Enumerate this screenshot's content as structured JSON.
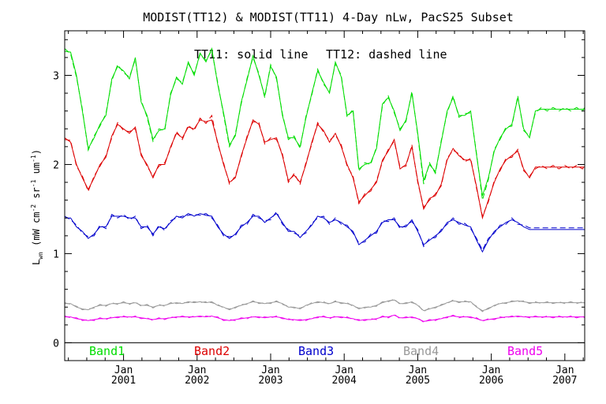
{
  "chart_data": {
    "type": "line",
    "title": "MODIST(TT12) & MODIST(TT11) 4-Day nLw, PacS25 Subset",
    "annotation": {
      "solid": "TT11: solid line",
      "dashed": "TT12: dashed line"
    },
    "ylabel": {
      "main": "L",
      "sub": "wn",
      "unit_open": " (mW cm",
      "sup1": "-2",
      "unit_sr": " sr",
      "sup2": "-1",
      "unit_um": " um",
      "sup3": "-1",
      "unit_close": ")"
    },
    "xlim": [
      2000.2,
      2007.27
    ],
    "ylim": [
      -0.2,
      3.5
    ],
    "grid": false,
    "x_ticks": [
      {
        "month": "Jan",
        "year": "2001",
        "x": 2001.0
      },
      {
        "month": "Jan",
        "year": "2002",
        "x": 2002.0
      },
      {
        "month": "Jan",
        "year": "2003",
        "x": 2003.0
      },
      {
        "month": "Jan",
        "year": "2004",
        "x": 2004.0
      },
      {
        "month": "Jan",
        "year": "2005",
        "x": 2005.0
      },
      {
        "month": "Jan",
        "year": "2006",
        "x": 2006.0
      },
      {
        "month": "Jan",
        "year": "2007",
        "x": 2007.0
      }
    ],
    "y_ticks": [
      {
        "label": "0",
        "value": 0
      },
      {
        "label": "1",
        "value": 1
      },
      {
        "label": "2",
        "value": 2
      },
      {
        "label": "3",
        "value": 3
      }
    ],
    "x": [
      2000.2,
      2000.28,
      2000.36,
      2000.44,
      2000.52,
      2000.6,
      2000.68,
      2000.76,
      2000.84,
      2000.92,
      2001.0,
      2001.08,
      2001.16,
      2001.24,
      2001.32,
      2001.4,
      2001.48,
      2001.56,
      2001.64,
      2001.72,
      2001.8,
      2001.88,
      2001.96,
      2002.04,
      2002.12,
      2002.2,
      2002.28,
      2002.36,
      2002.44,
      2002.52,
      2002.6,
      2002.68,
      2002.76,
      2002.84,
      2002.92,
      2003.0,
      2003.08,
      2003.16,
      2003.24,
      2003.32,
      2003.4,
      2003.48,
      2003.56,
      2003.64,
      2003.72,
      2003.8,
      2003.88,
      2003.96,
      2004.04,
      2004.12,
      2004.2,
      2004.28,
      2004.36,
      2004.44,
      2004.52,
      2004.6,
      2004.68,
      2004.76,
      2004.84,
      2004.92,
      2005.0,
      2005.08,
      2005.16,
      2005.24,
      2005.32,
      2005.4,
      2005.48,
      2005.56,
      2005.64,
      2005.72,
      2005.8,
      2005.88,
      2005.96,
      2006.04,
      2006.12,
      2006.2,
      2006.28,
      2006.36,
      2006.44,
      2006.52,
      2006.6,
      2006.68,
      2006.76,
      2006.84,
      2006.92,
      2007.0,
      2007.08,
      2007.16,
      2007.24,
      2007.27
    ],
    "series": [
      {
        "name": "Band1",
        "color": "#00dd00",
        "solid": [
          3.27,
          3.26,
          3.0,
          2.6,
          2.18,
          2.3,
          2.45,
          2.55,
          2.96,
          3.1,
          3.05,
          2.96,
          3.2,
          2.7,
          2.55,
          2.28,
          2.38,
          2.4,
          2.78,
          2.98,
          2.9,
          3.15,
          3.0,
          3.25,
          3.15,
          3.3,
          2.9,
          2.58,
          2.22,
          2.32,
          2.7,
          2.95,
          3.22,
          3.0,
          2.77,
          3.1,
          2.98,
          2.55,
          2.3,
          2.3,
          2.2,
          2.52,
          2.8,
          3.05,
          2.92,
          2.8,
          3.15,
          2.98,
          2.55,
          2.6,
          1.95,
          2.0,
          2.02,
          2.18,
          2.68,
          2.75,
          2.6,
          2.38,
          2.5,
          2.8,
          2.35,
          1.82,
          2.0,
          1.92,
          2.25,
          2.6,
          2.75,
          2.55,
          2.55,
          2.6,
          2.1,
          1.65,
          1.85,
          2.15,
          2.3,
          2.4,
          2.45,
          2.75,
          2.4,
          2.3,
          2.6,
          2.62,
          2.62,
          2.62,
          2.62,
          2.62,
          2.62,
          2.62,
          2.62,
          2.62
        ],
        "dashed": [
          3.3,
          3.24,
          2.98,
          2.62,
          2.16,
          2.32,
          2.43,
          2.57,
          2.94,
          3.12,
          3.03,
          2.98,
          3.18,
          2.72,
          2.53,
          2.26,
          2.4,
          2.38,
          2.8,
          2.96,
          2.92,
          3.13,
          3.02,
          3.23,
          3.17,
          3.28,
          2.92,
          2.56,
          2.2,
          2.34,
          2.68,
          2.97,
          3.2,
          3.02,
          2.75,
          3.12,
          2.96,
          2.57,
          2.28,
          2.32,
          2.18,
          2.54,
          2.78,
          3.07,
          2.9,
          2.82,
          3.13,
          3.0,
          2.53,
          2.62,
          1.93,
          2.02,
          2.0,
          2.2,
          2.66,
          2.77,
          2.58,
          2.4,
          2.48,
          2.82,
          2.33,
          1.78,
          2.02,
          1.9,
          2.27,
          2.58,
          2.77,
          2.53,
          2.57,
          2.58,
          2.12,
          1.6,
          1.83,
          2.17,
          2.28,
          2.42,
          2.43,
          2.77,
          2.38,
          2.32,
          2.58,
          2.64,
          2.6,
          2.64,
          2.6,
          2.64,
          2.6,
          2.64,
          2.6,
          2.64
        ]
      },
      {
        "name": "Band2",
        "color": "#dd0000",
        "solid": [
          2.3,
          2.25,
          2.0,
          1.85,
          1.72,
          1.85,
          2.0,
          2.08,
          2.32,
          2.45,
          2.4,
          2.35,
          2.42,
          2.1,
          2.0,
          1.85,
          2.0,
          2.0,
          2.2,
          2.35,
          2.3,
          2.42,
          2.4,
          2.5,
          2.48,
          2.5,
          2.25,
          2.0,
          1.8,
          1.85,
          2.1,
          2.3,
          2.5,
          2.45,
          2.25,
          2.28,
          2.3,
          2.1,
          1.82,
          1.88,
          1.8,
          2.0,
          2.25,
          2.45,
          2.38,
          2.25,
          2.35,
          2.2,
          2.0,
          1.85,
          1.58,
          1.65,
          1.72,
          1.8,
          2.05,
          2.15,
          2.28,
          1.95,
          2.0,
          2.2,
          1.82,
          1.5,
          1.62,
          1.65,
          1.78,
          2.05,
          2.18,
          2.1,
          2.05,
          2.05,
          1.75,
          1.4,
          1.6,
          1.8,
          1.95,
          2.05,
          2.1,
          2.15,
          1.95,
          1.85,
          1.97,
          1.97,
          1.97,
          1.97,
          1.97,
          1.97,
          1.97,
          1.97,
          1.97,
          1.97
        ],
        "dashed": [
          2.28,
          2.27,
          1.98,
          1.87,
          1.7,
          1.87,
          1.98,
          2.1,
          2.3,
          2.47,
          2.38,
          2.37,
          2.4,
          2.12,
          1.98,
          1.87,
          1.98,
          2.02,
          2.18,
          2.37,
          2.28,
          2.44,
          2.38,
          2.52,
          2.46,
          2.55,
          2.23,
          2.02,
          1.78,
          1.87,
          2.08,
          2.32,
          2.48,
          2.47,
          2.23,
          2.3,
          2.28,
          2.12,
          1.8,
          1.9,
          1.78,
          2.02,
          2.23,
          2.47,
          2.36,
          2.27,
          2.33,
          2.22,
          1.98,
          1.87,
          1.56,
          1.67,
          1.7,
          1.82,
          2.03,
          2.17,
          2.26,
          1.97,
          1.98,
          2.22,
          1.8,
          1.52,
          1.6,
          1.67,
          1.76,
          2.07,
          2.16,
          2.12,
          2.03,
          2.07,
          1.73,
          1.42,
          1.58,
          1.82,
          1.93,
          2.07,
          2.08,
          2.17,
          1.93,
          1.87,
          1.95,
          1.99,
          1.95,
          1.99,
          1.95,
          1.99,
          1.95,
          1.99,
          1.95,
          1.99
        ]
      },
      {
        "name": "Band3",
        "color": "#0000cc",
        "solid": [
          1.4,
          1.4,
          1.3,
          1.25,
          1.17,
          1.22,
          1.3,
          1.3,
          1.42,
          1.42,
          1.42,
          1.4,
          1.4,
          1.3,
          1.3,
          1.22,
          1.3,
          1.28,
          1.35,
          1.42,
          1.4,
          1.45,
          1.42,
          1.45,
          1.43,
          1.42,
          1.3,
          1.22,
          1.17,
          1.22,
          1.3,
          1.35,
          1.42,
          1.42,
          1.35,
          1.4,
          1.45,
          1.35,
          1.25,
          1.25,
          1.18,
          1.25,
          1.32,
          1.42,
          1.4,
          1.35,
          1.38,
          1.35,
          1.3,
          1.25,
          1.1,
          1.15,
          1.2,
          1.25,
          1.35,
          1.38,
          1.38,
          1.3,
          1.3,
          1.38,
          1.25,
          1.1,
          1.15,
          1.2,
          1.25,
          1.35,
          1.38,
          1.35,
          1.32,
          1.3,
          1.15,
          1.02,
          1.15,
          1.25,
          1.3,
          1.35,
          1.38,
          1.35,
          1.3,
          1.27,
          1.27,
          1.27,
          1.27,
          1.27,
          1.27,
          1.27,
          1.27,
          1.27,
          1.27,
          1.27
        ],
        "dashed": [
          1.42,
          1.38,
          1.32,
          1.23,
          1.19,
          1.2,
          1.32,
          1.28,
          1.44,
          1.4,
          1.44,
          1.38,
          1.42,
          1.28,
          1.32,
          1.2,
          1.32,
          1.26,
          1.37,
          1.4,
          1.42,
          1.43,
          1.44,
          1.43,
          1.45,
          1.4,
          1.32,
          1.2,
          1.19,
          1.2,
          1.32,
          1.33,
          1.44,
          1.4,
          1.37,
          1.38,
          1.47,
          1.33,
          1.27,
          1.23,
          1.2,
          1.23,
          1.34,
          1.4,
          1.42,
          1.33,
          1.4,
          1.33,
          1.32,
          1.23,
          1.12,
          1.13,
          1.22,
          1.23,
          1.37,
          1.36,
          1.4,
          1.28,
          1.32,
          1.36,
          1.27,
          1.08,
          1.17,
          1.18,
          1.27,
          1.33,
          1.4,
          1.33,
          1.34,
          1.28,
          1.17,
          1.04,
          1.17,
          1.23,
          1.32,
          1.33,
          1.4,
          1.33,
          1.32,
          1.29,
          1.29,
          1.29,
          1.29,
          1.29,
          1.29,
          1.29,
          1.29,
          1.29,
          1.29,
          1.29
        ]
      },
      {
        "name": "Band4",
        "color": "#999999",
        "solid": [
          0.44,
          0.44,
          0.4,
          0.38,
          0.37,
          0.4,
          0.42,
          0.42,
          0.44,
          0.44,
          0.45,
          0.44,
          0.45,
          0.42,
          0.42,
          0.4,
          0.42,
          0.42,
          0.44,
          0.45,
          0.44,
          0.46,
          0.45,
          0.46,
          0.45,
          0.46,
          0.42,
          0.4,
          0.37,
          0.4,
          0.42,
          0.44,
          0.46,
          0.45,
          0.44,
          0.45,
          0.46,
          0.44,
          0.4,
          0.4,
          0.38,
          0.42,
          0.44,
          0.46,
          0.45,
          0.44,
          0.46,
          0.45,
          0.44,
          0.42,
          0.38,
          0.4,
          0.4,
          0.42,
          0.45,
          0.47,
          0.48,
          0.44,
          0.44,
          0.46,
          0.42,
          0.36,
          0.38,
          0.4,
          0.42,
          0.45,
          0.47,
          0.46,
          0.46,
          0.46,
          0.4,
          0.36,
          0.38,
          0.42,
          0.44,
          0.45,
          0.46,
          0.47,
          0.46,
          0.45,
          0.45,
          0.45,
          0.45,
          0.45,
          0.45,
          0.45,
          0.45,
          0.45,
          0.45,
          0.45
        ],
        "dashed": [
          0.45,
          0.43,
          0.41,
          0.37,
          0.38,
          0.39,
          0.43,
          0.41,
          0.45,
          0.43,
          0.46,
          0.43,
          0.46,
          0.41,
          0.43,
          0.39,
          0.43,
          0.41,
          0.45,
          0.44,
          0.45,
          0.45,
          0.46,
          0.45,
          0.46,
          0.45,
          0.43,
          0.39,
          0.38,
          0.39,
          0.43,
          0.43,
          0.47,
          0.44,
          0.45,
          0.44,
          0.47,
          0.43,
          0.41,
          0.39,
          0.39,
          0.41,
          0.45,
          0.45,
          0.46,
          0.43,
          0.47,
          0.44,
          0.45,
          0.41,
          0.39,
          0.39,
          0.41,
          0.41,
          0.46,
          0.46,
          0.49,
          0.43,
          0.45,
          0.45,
          0.43,
          0.35,
          0.39,
          0.39,
          0.43,
          0.44,
          0.48,
          0.45,
          0.47,
          0.45,
          0.41,
          0.35,
          0.39,
          0.41,
          0.45,
          0.44,
          0.47,
          0.46,
          0.47,
          0.44,
          0.46,
          0.44,
          0.46,
          0.44,
          0.46,
          0.44,
          0.46,
          0.44,
          0.46,
          0.44
        ]
      },
      {
        "name": "Band5",
        "color": "#ee00ee",
        "solid": [
          0.29,
          0.29,
          0.27,
          0.26,
          0.25,
          0.26,
          0.27,
          0.27,
          0.28,
          0.29,
          0.29,
          0.29,
          0.29,
          0.28,
          0.27,
          0.26,
          0.27,
          0.27,
          0.28,
          0.29,
          0.29,
          0.29,
          0.29,
          0.3,
          0.29,
          0.3,
          0.28,
          0.26,
          0.25,
          0.26,
          0.27,
          0.28,
          0.29,
          0.29,
          0.28,
          0.29,
          0.29,
          0.28,
          0.26,
          0.26,
          0.25,
          0.26,
          0.27,
          0.29,
          0.29,
          0.28,
          0.29,
          0.29,
          0.28,
          0.27,
          0.25,
          0.26,
          0.26,
          0.27,
          0.29,
          0.29,
          0.31,
          0.28,
          0.28,
          0.29,
          0.27,
          0.24,
          0.25,
          0.26,
          0.27,
          0.29,
          0.3,
          0.29,
          0.29,
          0.29,
          0.27,
          0.25,
          0.26,
          0.27,
          0.28,
          0.29,
          0.29,
          0.3,
          0.29,
          0.29,
          0.29,
          0.29,
          0.29,
          0.29,
          0.29,
          0.29,
          0.29,
          0.29,
          0.29,
          0.29
        ],
        "dashed": [
          0.3,
          0.28,
          0.28,
          0.25,
          0.26,
          0.25,
          0.28,
          0.26,
          0.29,
          0.28,
          0.3,
          0.28,
          0.3,
          0.27,
          0.28,
          0.25,
          0.28,
          0.26,
          0.29,
          0.28,
          0.3,
          0.28,
          0.3,
          0.29,
          0.3,
          0.29,
          0.29,
          0.25,
          0.26,
          0.25,
          0.28,
          0.27,
          0.3,
          0.28,
          0.29,
          0.28,
          0.3,
          0.27,
          0.27,
          0.25,
          0.26,
          0.25,
          0.28,
          0.28,
          0.3,
          0.27,
          0.3,
          0.28,
          0.29,
          0.26,
          0.26,
          0.25,
          0.27,
          0.26,
          0.3,
          0.28,
          0.32,
          0.27,
          0.29,
          0.28,
          0.28,
          0.23,
          0.26,
          0.25,
          0.28,
          0.28,
          0.31,
          0.28,
          0.3,
          0.28,
          0.28,
          0.24,
          0.27,
          0.26,
          0.29,
          0.28,
          0.3,
          0.29,
          0.3,
          0.28,
          0.3,
          0.28,
          0.3,
          0.28,
          0.3,
          0.28,
          0.3,
          0.28,
          0.3,
          0.28
        ]
      }
    ]
  }
}
